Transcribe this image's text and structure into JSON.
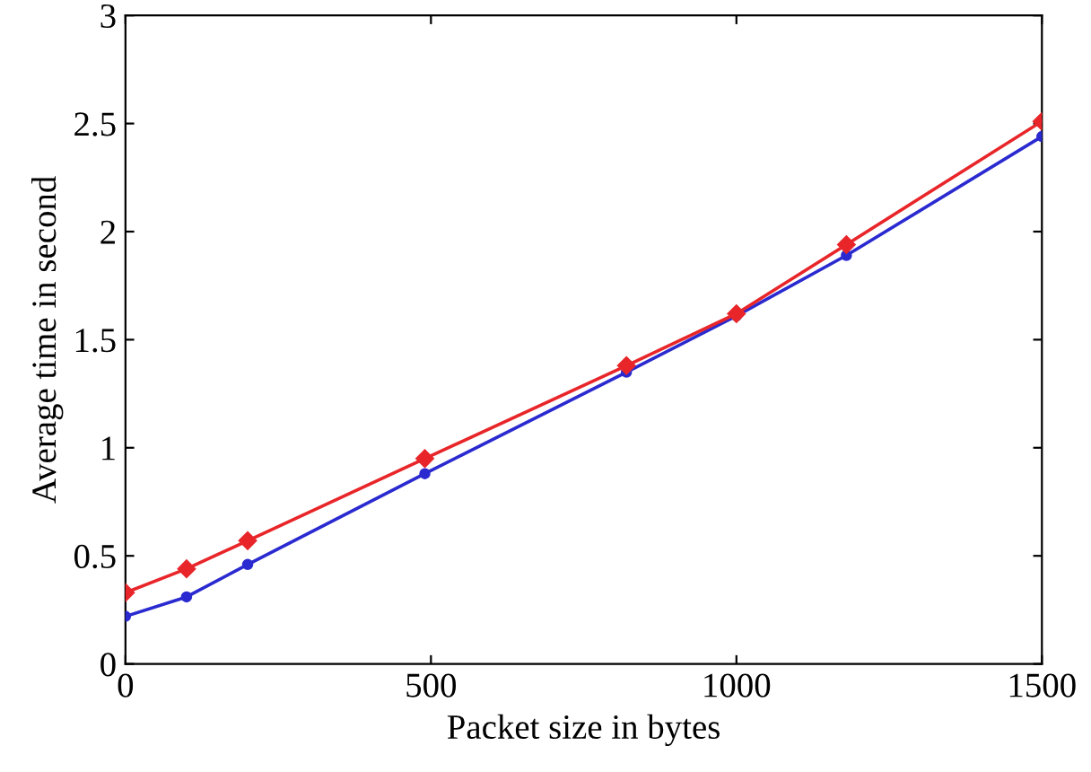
{
  "chart_data": {
    "type": "line",
    "xlabel": "Packet size in bytes",
    "ylabel": "Average time in second",
    "xlim": [
      0,
      1500
    ],
    "ylim": [
      0,
      3
    ],
    "xticks": [
      0,
      500,
      1000,
      1500
    ],
    "yticks": [
      0,
      0.5,
      1,
      1.5,
      2,
      2.5,
      3
    ],
    "grid": false,
    "series": [
      {
        "color": "#e8262a",
        "marker": "diamond",
        "x": [
          0,
          100,
          200,
          490,
          820,
          1000,
          1180,
          1500
        ],
        "values": [
          0.33,
          0.44,
          0.57,
          0.95,
          1.38,
          1.62,
          1.94,
          2.51
        ]
      },
      {
        "color": "#2a2ad0",
        "marker": "circle",
        "x": [
          0,
          100,
          200,
          490,
          820,
          1000,
          1180,
          1500
        ],
        "values": [
          0.22,
          0.31,
          0.46,
          0.88,
          1.35,
          1.61,
          1.89,
          2.44
        ]
      }
    ]
  }
}
